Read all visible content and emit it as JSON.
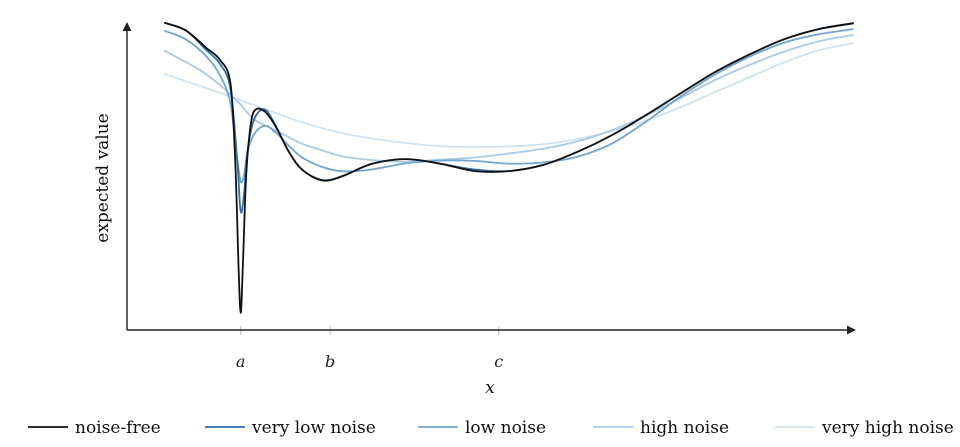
{
  "chart_data": {
    "type": "line",
    "xlabel": "x",
    "ylabel": "expected value",
    "xlim": [
      0,
      100
    ],
    "ylim": [
      0,
      100
    ],
    "x_ticks": [
      {
        "label": "a",
        "value": 11
      },
      {
        "label": "b",
        "value": 24
      },
      {
        "label": "c",
        "value": 48.5
      }
    ],
    "legend_position": "bottom",
    "series": [
      {
        "name": "very high noise",
        "color": "#cfe2f1",
        "x": [
          0,
          5,
          10,
          15,
          20,
          25,
          30,
          35,
          40,
          45,
          50,
          55,
          60,
          65,
          70,
          75,
          80,
          85,
          90,
          95,
          100
        ],
        "y": [
          83.1,
          79.3,
          75.4,
          71.3,
          67.4,
          64.3,
          62.2,
          60.7,
          59.7,
          59.4,
          59.6,
          60.3,
          62.0,
          64.6,
          68.1,
          72.4,
          77.3,
          82.1,
          86.9,
          90.8,
          93.1
        ]
      },
      {
        "name": "high noise",
        "color": "#a8cbe6",
        "x": [
          0,
          5,
          8,
          10,
          11,
          12,
          13,
          15,
          18,
          20,
          23,
          26,
          30,
          35,
          40,
          45,
          50,
          55,
          60,
          65,
          70,
          75,
          80,
          85,
          90,
          95,
          100
        ],
        "y": [
          90.6,
          84.5,
          79.5,
          75.4,
          73.2,
          70.5,
          68.2,
          66.0,
          62.6,
          60.4,
          58.2,
          56.3,
          55.2,
          54.6,
          55.3,
          56.0,
          57.3,
          58.9,
          61.3,
          64.9,
          69.7,
          75.4,
          81.2,
          86.1,
          90.4,
          93.7,
          95.8
        ]
      },
      {
        "name": "low noise",
        "color": "#6fa6d3",
        "x": [
          0,
          3,
          6,
          8,
          9.5,
          10.5,
          11,
          11.5,
          12,
          13,
          14.5,
          16,
          18,
          20,
          23,
          26,
          30,
          35,
          40,
          45,
          50,
          55,
          60,
          65,
          70,
          75,
          80,
          85,
          90,
          95,
          100
        ],
        "y": [
          97.1,
          94.4,
          88.9,
          82.7,
          73.6,
          55.8,
          48.2,
          50.3,
          58.0,
          63.7,
          66.3,
          64.3,
          59.8,
          55.9,
          52.8,
          51.5,
          52.1,
          54.1,
          55.0,
          54.9,
          54.0,
          54.4,
          56.3,
          60.6,
          67.8,
          75.9,
          83.0,
          88.8,
          93.3,
          96.0,
          97.7
        ]
      },
      {
        "name": "very low noise",
        "color": "#2f6ea8",
        "x": [
          0,
          3,
          6,
          8,
          9.5,
          10.5,
          11,
          11.5,
          12,
          13,
          14.5,
          16,
          18,
          20,
          23,
          26,
          30,
          35,
          40,
          45,
          50,
          55,
          60,
          65,
          70,
          75,
          80,
          85,
          90,
          95,
          100
        ],
        "y": [
          99.7,
          97.3,
          90.9,
          86.4,
          78.4,
          55.0,
          38.5,
          44.4,
          58.3,
          68.6,
          71.6,
          66.7,
          57.9,
          51.9,
          48.7,
          50.2,
          53.9,
          55.5,
          54.0,
          52.1,
          51.6,
          53.6,
          57.9,
          63.3,
          69.9,
          76.9,
          83.8,
          89.5,
          94.4,
          97.7,
          99.5
        ]
      },
      {
        "name": "noise-free",
        "color": "#111111",
        "x": [
          0,
          3,
          6,
          8,
          9.5,
          10.2,
          10.7,
          11,
          11.3,
          11.8,
          12.5,
          13.2,
          14.5,
          16,
          18,
          20,
          23,
          26,
          30,
          35,
          40,
          45,
          50,
          55,
          60,
          65,
          70,
          75,
          80,
          85,
          90,
          95,
          100
        ],
        "y": [
          99.7,
          97.3,
          91.6,
          87.7,
          80.2,
          55.0,
          20.0,
          5.6,
          19.6,
          50.3,
          67.3,
          71.6,
          70.9,
          66.4,
          57.9,
          51.9,
          48.5,
          50.1,
          53.9,
          55.5,
          54.0,
          51.6,
          51.6,
          53.6,
          57.9,
          63.3,
          69.9,
          76.9,
          83.8,
          89.5,
          94.4,
          97.7,
          99.6
        ]
      }
    ],
    "legend": [
      {
        "label": "noise-free",
        "color": "#111111"
      },
      {
        "label": "very low noise",
        "color": "#2f6ea8"
      },
      {
        "label": "low noise",
        "color": "#6fa6d3"
      },
      {
        "label": "high noise",
        "color": "#a8cbe6"
      },
      {
        "label": "very high noise",
        "color": "#cfe2f1"
      }
    ]
  }
}
